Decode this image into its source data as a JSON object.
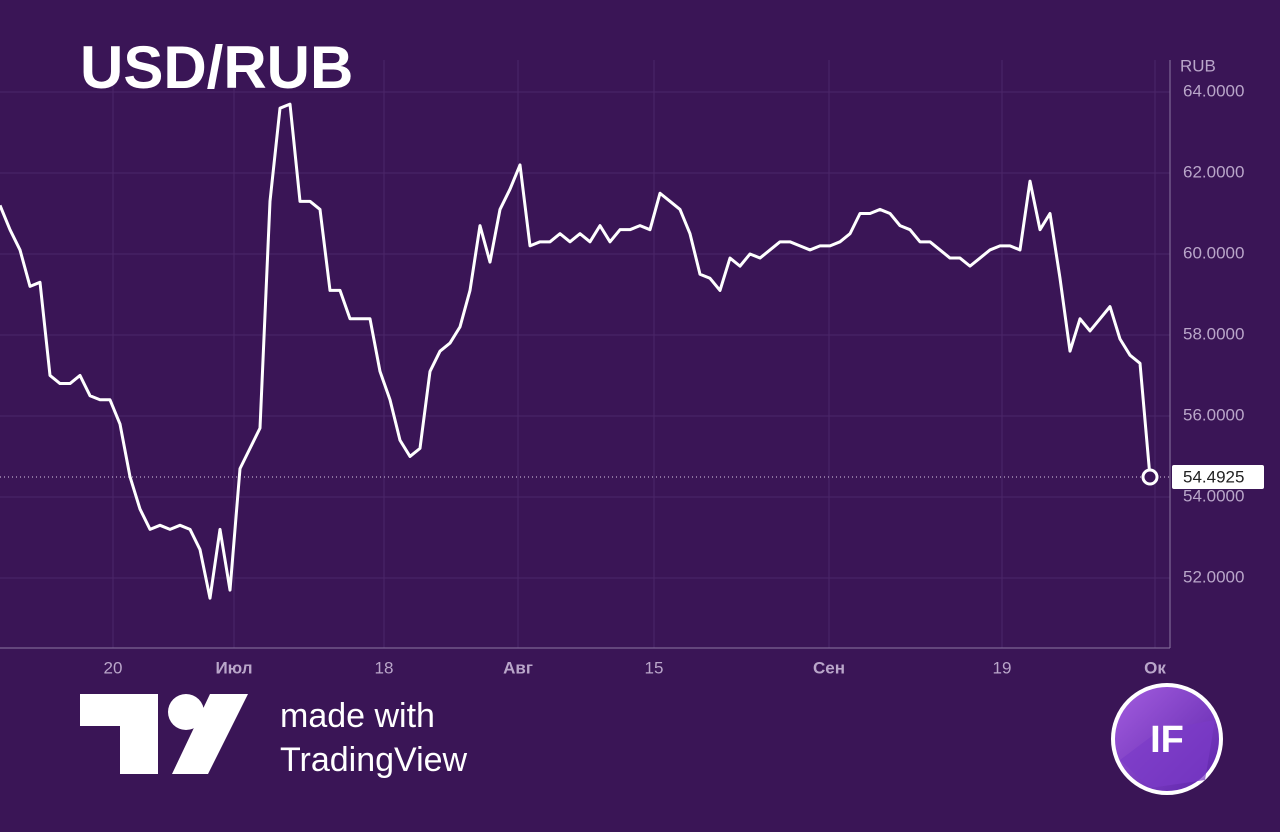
{
  "chart_data": {
    "type": "line",
    "title": "USD/RUB",
    "ylabel": "RUB",
    "footer": [
      "made with",
      "TradingView"
    ],
    "badge": "IF",
    "color": "#ffffff",
    "grid": true,
    "xlim": [
      0,
      117
    ],
    "ylim": [
      50.27,
      64.79
    ],
    "xticks": [
      {
        "value": 11.3,
        "label": "20"
      },
      {
        "value": 23.4,
        "label": "Июл"
      },
      {
        "value": 38.4,
        "label": "18"
      },
      {
        "value": 51.8,
        "label": "Авг"
      },
      {
        "value": 65.4,
        "label": "15"
      },
      {
        "value": 82.9,
        "label": "Сен"
      },
      {
        "value": 100.2,
        "label": "19"
      },
      {
        "value": 115.5,
        "label": "Ок"
      }
    ],
    "yticks": [
      {
        "value": 52,
        "label": "52.0000"
      },
      {
        "value": 54,
        "label": "54.0000"
      },
      {
        "value": 56,
        "label": "56.0000"
      },
      {
        "value": 58,
        "label": "58.0000"
      },
      {
        "value": 60,
        "label": "60.0000"
      },
      {
        "value": 62,
        "label": "62.0000"
      },
      {
        "value": 64,
        "label": "64.0000"
      }
    ],
    "values": [
      61.2,
      60.6,
      60.1,
      59.2,
      59.3,
      57.0,
      56.8,
      56.8,
      57.0,
      56.5,
      56.4,
      56.4,
      55.8,
      54.5,
      53.7,
      53.2,
      53.3,
      53.2,
      53.3,
      53.2,
      52.7,
      51.5,
      53.2,
      51.7,
      54.7,
      55.2,
      55.7,
      61.3,
      63.6,
      63.7,
      61.3,
      61.3,
      61.1,
      59.1,
      59.1,
      58.4,
      58.4,
      58.4,
      57.1,
      56.4,
      55.4,
      55.0,
      55.2,
      57.1,
      57.6,
      57.8,
      58.2,
      59.1,
      60.7,
      59.8,
      61.1,
      61.6,
      62.2,
      60.2,
      60.3,
      60.3,
      60.5,
      60.3,
      60.5,
      60.3,
      60.7,
      60.3,
      60.6,
      60.6,
      60.7,
      60.6,
      61.5,
      61.3,
      61.1,
      60.5,
      59.5,
      59.4,
      59.1,
      59.9,
      59.7,
      60.0,
      59.9,
      60.1,
      60.3,
      60.3,
      60.2,
      60.1,
      60.2,
      60.2,
      60.3,
      60.5,
      61.0,
      61.0,
      61.1,
      61.0,
      60.7,
      60.6,
      60.3,
      60.3,
      60.1,
      59.9,
      59.9,
      59.7,
      59.9,
      60.1,
      60.2,
      60.2,
      60.1,
      61.8,
      60.6,
      61.0,
      59.4,
      57.6,
      58.4,
      58.1,
      58.4,
      58.7,
      57.9,
      57.5,
      57.3,
      54.4925
    ]
  }
}
